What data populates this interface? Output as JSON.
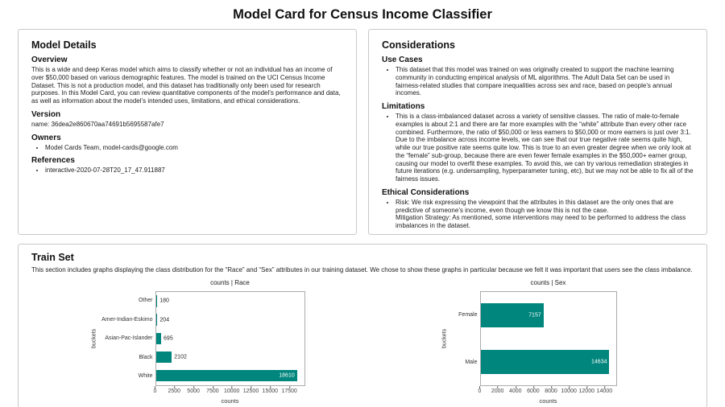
{
  "page_title": "Model Card for Census Income Classifier",
  "model_details": {
    "title": "Model Details",
    "overview_heading": "Overview",
    "overview_text": "This is a wide and deep Keras model which aims to classify whether or not an individual has an income of over $50,000 based on various demographic features. The model is trained on the UCI Census Income Dataset. This is not a production model, and this dataset has traditionally only been used for research purposes. In this Model Card, you can review quantitative components of the model’s performance and data, as well as information about the model’s intended uses, limitations, and ethical considerations.",
    "version_heading": "Version",
    "version_text": "name: 36dea2e860670aa74691b5695587afe7",
    "owners_heading": "Owners",
    "owners_items": [
      "Model Cards Team, model-cards@google.com"
    ],
    "references_heading": "References",
    "references_items": [
      "interactive-2020-07-28T20_17_47.911887"
    ]
  },
  "considerations": {
    "title": "Considerations",
    "use_cases_heading": "Use Cases",
    "use_cases_items": [
      "This dataset that this model was trained on was originally created to support the machine learning community in conducting empirical analysis of ML algorithms. The Adult Data Set can be used in fairness-related studies that compare inequalities across sex and race, based on people’s annual incomes."
    ],
    "limitations_heading": "Limitations",
    "limitations_items": [
      "This is a class-imbalanced dataset across a variety of sensitive classes. The ratio of male-to-female examples is about 2:1 and there are far more examples with the “white” attribute than every other race combined. Furthermore, the ratio of $50,000 or less earners to $50,000 or more earners is just over 3:1. Due to the imbalance across income levels, we can see that our true negative rate seems quite high, while our true positive rate seems quite low. This is true to an even greater degree when we only look at the “female” sub-group, because there are even fewer female examples in the $50,000+ earner group, causing our model to overfit these examples. To avoid this, we can try various remediation strategies in future iterations (e.g. undersampling, hyperparameter tuning, etc), but we may not be able to fix all of the fairness issues."
    ],
    "ethical_heading": "Ethical Considerations",
    "ethical_risk": "Risk: We risk expressing the viewpoint that the attributes in this dataset are the only ones that are predictive of someone’s income, even though we know this is not the case.",
    "ethical_mitigation": "Mitigation Strategy: As mentioned, some interventions may need to be performed to address the class imbalances in the dataset."
  },
  "train_set": {
    "title": "Train Set",
    "description": "This section includes graphs displaying the class distribution for the “Race” and “Sex” attributes in our training dataset. We chose to show these graphs in particular because we felt it was important that users see the class imbalance."
  },
  "chart_data": [
    {
      "type": "bar",
      "orientation": "horizontal",
      "title": "counts | Race",
      "categories": [
        "Other",
        "Amer-Indian-Eskimo",
        "Asian-Pac-Islander",
        "Black",
        "White"
      ],
      "values": [
        180,
        204,
        695,
        2102,
        18610
      ],
      "xlabel": "counts",
      "ylabel": "buckets",
      "xticks": [
        0,
        2500,
        5000,
        7500,
        10000,
        12500,
        15000,
        17500
      ],
      "xlim": [
        0,
        19540
      ],
      "bar_color": "#00867d",
      "grid": false,
      "legend": false
    },
    {
      "type": "bar",
      "orientation": "horizontal",
      "title": "counts | Sex",
      "categories": [
        "Female",
        "Male"
      ],
      "values": [
        7157,
        14634
      ],
      "xlabel": "counts",
      "ylabel": "buckets",
      "xticks": [
        0,
        2000,
        4000,
        6000,
        8000,
        10000,
        12000,
        14000
      ],
      "xlim": [
        0,
        15366
      ],
      "bar_color": "#00867d",
      "grid": false,
      "legend": false
    }
  ]
}
